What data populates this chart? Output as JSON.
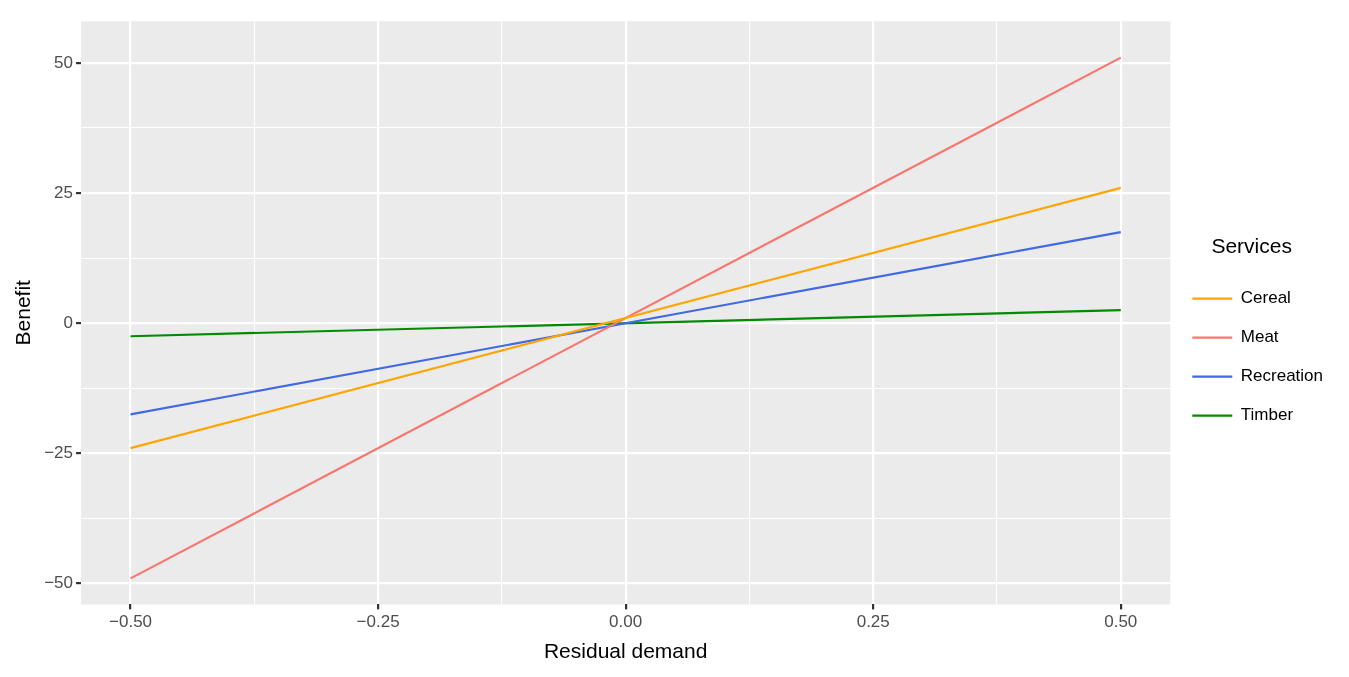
{
  "chart_data": {
    "type": "line",
    "xlabel": "Residual demand",
    "ylabel": "Benefit",
    "legend_title": "Services",
    "legend": "right",
    "grid": true,
    "marker": "none",
    "line_style": "solid",
    "xlim": [
      -0.55,
      0.55
    ],
    "ylim": [
      -54,
      58
    ],
    "xticks": [
      {
        "value": -0.5,
        "label": "−0.50"
      },
      {
        "value": -0.375,
        "label": null
      },
      {
        "value": -0.25,
        "label": "−0.25"
      },
      {
        "value": -0.125,
        "label": null
      },
      {
        "value": 0,
        "label": "0.00"
      },
      {
        "value": 0.125,
        "label": null
      },
      {
        "value": 0.25,
        "label": "0.25"
      },
      {
        "value": 0.375,
        "label": null
      },
      {
        "value": 0.5,
        "label": "0.50"
      }
    ],
    "yticks": [
      {
        "value": -50,
        "label": "−50"
      },
      {
        "value": -37.5,
        "label": null
      },
      {
        "value": -25,
        "label": "−25"
      },
      {
        "value": -12.5,
        "label": null
      },
      {
        "value": 0,
        "label": "0"
      },
      {
        "value": 12.5,
        "label": null
      },
      {
        "value": 25,
        "label": "25"
      },
      {
        "value": 37.5,
        "label": null
      },
      {
        "value": 50,
        "label": "50"
      }
    ],
    "x": [
      -0.5,
      0.5
    ],
    "series": [
      {
        "name": "Cereal",
        "color": "#ffa500",
        "values": [
          -24,
          26
        ]
      },
      {
        "name": "Meat",
        "color": "#f8766d",
        "values": [
          -49,
          51
        ]
      },
      {
        "name": "Recreation",
        "color": "#4169e1",
        "values": [
          -17.5,
          17.5
        ]
      },
      {
        "name": "Timber",
        "color": "#008b00",
        "values": [
          -2.5,
          2.5
        ]
      }
    ]
  }
}
